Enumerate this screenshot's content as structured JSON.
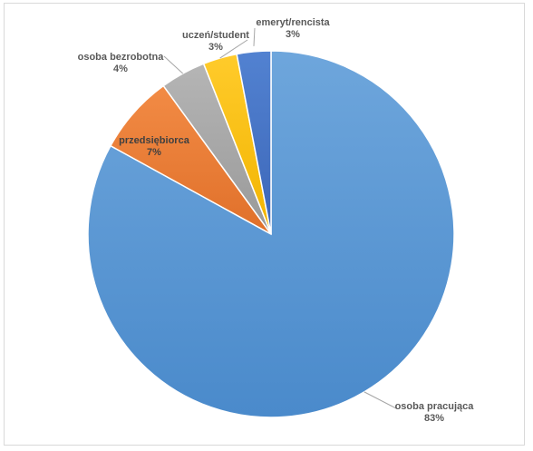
{
  "chart_data": {
    "type": "pie",
    "title": "",
    "start_angle_deg": 0,
    "direction": "clockwise",
    "slices": [
      {
        "name": "osoba pracująca",
        "value": 83,
        "value_label": "83%",
        "color": "#5b9bd5"
      },
      {
        "name": "przedsiębiorca",
        "value": 7,
        "value_label": "7%",
        "color": "#ed7d31"
      },
      {
        "name": "osoba bezrobotna",
        "value": 4,
        "value_label": "4%",
        "color": "#a5a5a5"
      },
      {
        "name": "uczeń/student",
        "value": 3,
        "value_label": "3%",
        "color": "#ffc000"
      },
      {
        "name": "emeryt/rencista",
        "value": 3,
        "value_label": "3%",
        "color": "#4472c4"
      }
    ]
  }
}
